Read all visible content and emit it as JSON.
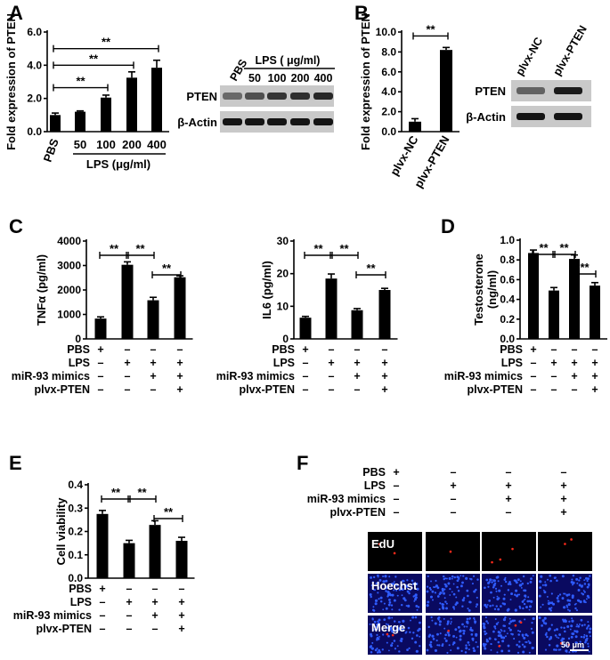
{
  "panels": {
    "A": {
      "label": "A"
    },
    "B": {
      "label": "B"
    },
    "C": {
      "label": "C"
    },
    "D": {
      "label": "D"
    },
    "E": {
      "label": "E"
    },
    "F": {
      "label": "F"
    }
  },
  "significance": "**",
  "chart_data": [
    {
      "id": "A",
      "type": "bar",
      "categories": [
        "PBS",
        "50",
        "100",
        "200",
        "400"
      ],
      "values": [
        1.0,
        1.2,
        2.05,
        3.25,
        3.85
      ],
      "errors": [
        0.12,
        0.05,
        0.15,
        0.35,
        0.45
      ],
      "ylabel": "Fold expression of PTEN",
      "xlabel": "LPS (μg/ml)",
      "ylim": [
        0,
        6
      ],
      "yticks": [
        "0.0",
        "2.0",
        "4.0",
        "6.0"
      ],
      "ytick_values": [
        0,
        2,
        4,
        6
      ],
      "comparisons": [
        [
          0,
          2
        ],
        [
          0,
          3
        ],
        [
          0,
          4
        ]
      ]
    },
    {
      "id": "B",
      "type": "bar",
      "categories": [
        "plvx-NC",
        "plvx-PTEN"
      ],
      "values": [
        1.0,
        8.2
      ],
      "errors": [
        0.3,
        0.25
      ],
      "ylabel": "Fold expression of PTEN",
      "ylim": [
        0,
        10
      ],
      "yticks": [
        "0.0",
        "2.0",
        "4.0",
        "6.0",
        "8.0",
        "10.0"
      ],
      "ytick_values": [
        0,
        2,
        4,
        6,
        8,
        10
      ],
      "comparisons": [
        [
          0,
          1
        ]
      ]
    },
    {
      "id": "C1",
      "type": "bar",
      "values": [
        830,
        3030,
        1580,
        2520
      ],
      "errors": [
        70,
        120,
        120,
        60
      ],
      "ylabel": "TNFα (pg/ml)",
      "ylim": [
        0,
        4000
      ],
      "yticks": [
        "0",
        "1000",
        "2000",
        "3000",
        "4000"
      ],
      "ytick_values": [
        0,
        1000,
        2000,
        3000,
        4000
      ],
      "comparisons": [
        [
          0,
          1
        ],
        [
          1,
          2
        ],
        [
          2,
          3
        ]
      ]
    },
    {
      "id": "C2",
      "type": "bar",
      "values": [
        6.5,
        18.5,
        8.8,
        15.0
      ],
      "errors": [
        0.4,
        1.4,
        0.5,
        0.5
      ],
      "ylabel": "IL6 (pg/ml)",
      "ylim": [
        0,
        30
      ],
      "yticks": [
        "0",
        "10",
        "20",
        "30"
      ],
      "ytick_values": [
        0,
        10,
        20,
        30
      ],
      "comparisons": [
        [
          0,
          1
        ],
        [
          1,
          2
        ],
        [
          2,
          3
        ]
      ]
    },
    {
      "id": "D",
      "type": "bar",
      "values": [
        0.87,
        0.49,
        0.81,
        0.54
      ],
      "errors": [
        0.03,
        0.03,
        0.04,
        0.03
      ],
      "ylabel_lines": [
        "Testosterone",
        "(ng/ml)"
      ],
      "ylim": [
        0,
        1.0
      ],
      "yticks": [
        "0.0",
        "0.2",
        "0.4",
        "0.6",
        "0.8",
        "1.0"
      ],
      "ytick_values": [
        0,
        0.2,
        0.4,
        0.6,
        0.8,
        1.0
      ],
      "comparisons": [
        [
          0,
          1
        ],
        [
          1,
          2
        ],
        [
          2,
          3
        ]
      ]
    },
    {
      "id": "E",
      "type": "bar",
      "values": [
        0.275,
        0.15,
        0.228,
        0.16
      ],
      "errors": [
        0.015,
        0.012,
        0.018,
        0.015
      ],
      "ylabel": "Cell viability",
      "ylim": [
        0,
        0.4
      ],
      "yticks": [
        "0.0",
        "0.1",
        "0.2",
        "0.3",
        "0.4"
      ],
      "ytick_values": [
        0,
        0.1,
        0.2,
        0.3,
        0.4
      ],
      "comparisons": [
        [
          0,
          1
        ],
        [
          1,
          2
        ],
        [
          2,
          3
        ]
      ]
    }
  ],
  "condition_table": {
    "rows": [
      "PBS",
      "LPS",
      "miR-93 mimics",
      "plvx-PTEN"
    ],
    "signs": [
      [
        "+",
        "–",
        "–",
        "–"
      ],
      [
        "–",
        "+",
        "+",
        "+"
      ],
      [
        "–",
        "–",
        "+",
        "+"
      ],
      [
        "–",
        "–",
        "–",
        "+"
      ]
    ]
  },
  "blots": {
    "A": {
      "header": "LPS ( μg/ml)",
      "lanes": [
        "PBS",
        "50",
        "100",
        "200",
        "400"
      ],
      "rows": [
        "PTEN",
        "β-Actin"
      ]
    },
    "B": {
      "lanes": [
        "plvx-NC",
        "plvx-PTEN"
      ],
      "rows": [
        "PTEN",
        "β-Actin"
      ]
    }
  },
  "micrographs": {
    "rows": [
      "EdU",
      "Hoechst",
      "Merge"
    ],
    "scale_bar": "50 μm",
    "colors": {
      "edu_bg": "#000000",
      "edu_dot": "#ff2a1a",
      "nuclei_bg": "#0a0a60",
      "nuclei": "#2f5cff"
    }
  }
}
